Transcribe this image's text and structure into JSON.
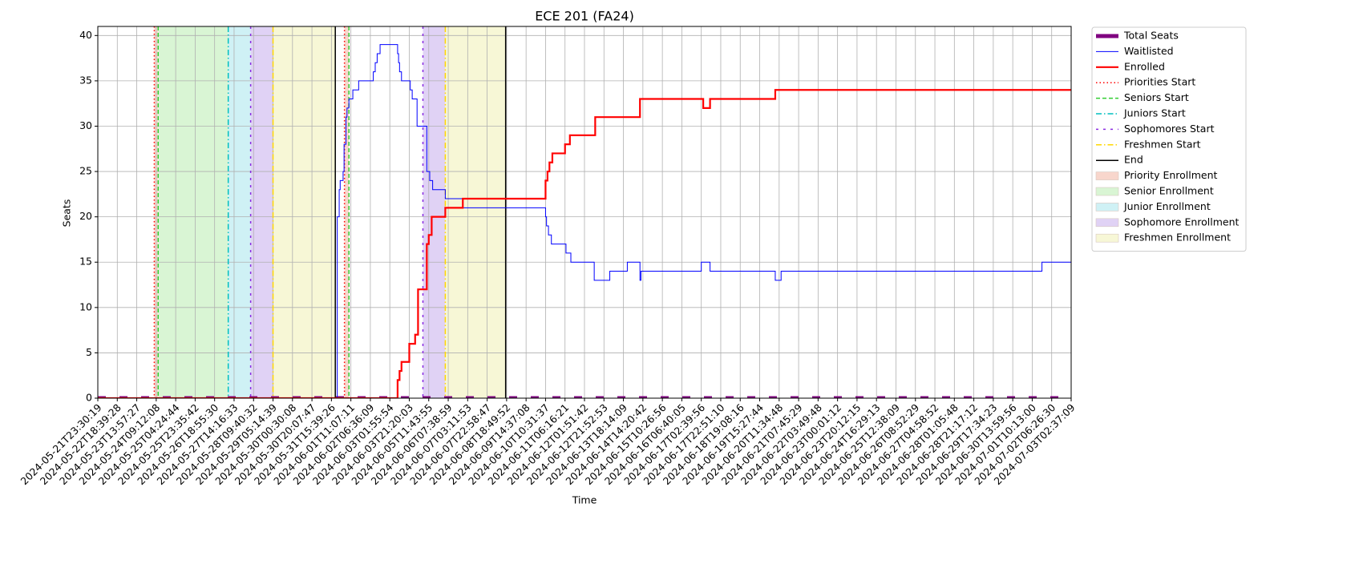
{
  "chart_data": {
    "type": "line",
    "title": "ECE 201 (FA24)",
    "xlabel": "Time",
    "ylabel": "Seats",
    "xlim": [
      0,
      50
    ],
    "ylim": [
      0,
      41
    ],
    "yticks": [
      0,
      5,
      10,
      15,
      20,
      25,
      30,
      35,
      40
    ],
    "grid": true,
    "step": "post",
    "legend": "outside upper right",
    "xticks": [
      {
        "value": 0,
        "label": "2024-05-21T23:30:19"
      },
      {
        "value": 1,
        "label": "2024-05-22T18:39:28"
      },
      {
        "value": 2,
        "label": "2024-05-23T13:57:27"
      },
      {
        "value": 3,
        "label": "2024-05-24T09:12:08"
      },
      {
        "value": 4,
        "label": "2024-05-25T04:24:44"
      },
      {
        "value": 5,
        "label": "2024-05-25T23:35:42"
      },
      {
        "value": 6,
        "label": "2024-05-26T18:55:30"
      },
      {
        "value": 7,
        "label": "2024-05-27T14:16:33"
      },
      {
        "value": 8,
        "label": "2024-05-28T09:40:32"
      },
      {
        "value": 9,
        "label": "2024-05-29T05:14:39"
      },
      {
        "value": 10,
        "label": "2024-05-30T00:30:08"
      },
      {
        "value": 11,
        "label": "2024-05-30T20:07:47"
      },
      {
        "value": 12,
        "label": "2024-05-31T15:39:26"
      },
      {
        "value": 13,
        "label": "2024-06-01T11:07:11"
      },
      {
        "value": 14,
        "label": "2024-06-02T06:36:09"
      },
      {
        "value": 15,
        "label": "2024-06-03T01:55:54"
      },
      {
        "value": 16,
        "label": "2024-06-03T21:20:03"
      },
      {
        "value": 17,
        "label": "2024-06-05T11:43:55"
      },
      {
        "value": 18,
        "label": "2024-06-06T07:38:59"
      },
      {
        "value": 19,
        "label": "2024-06-07T03:11:53"
      },
      {
        "value": 20,
        "label": "2024-06-07T22:58:47"
      },
      {
        "value": 21,
        "label": "2024-06-08T18:49:52"
      },
      {
        "value": 22,
        "label": "2024-06-09T14:37:08"
      },
      {
        "value": 23,
        "label": "2024-06-10T10:31:37"
      },
      {
        "value": 24,
        "label": "2024-06-11T06:16:21"
      },
      {
        "value": 25,
        "label": "2024-06-12T01:51:42"
      },
      {
        "value": 26,
        "label": "2024-06-12T21:52:53"
      },
      {
        "value": 27,
        "label": "2024-06-13T18:14:09"
      },
      {
        "value": 28,
        "label": "2024-06-14T14:20:42"
      },
      {
        "value": 29,
        "label": "2024-06-15T10:26:56"
      },
      {
        "value": 30,
        "label": "2024-06-16T06:40:05"
      },
      {
        "value": 31,
        "label": "2024-06-17T02:39:56"
      },
      {
        "value": 32,
        "label": "2024-06-17T22:51:10"
      },
      {
        "value": 33,
        "label": "2024-06-18T19:08:16"
      },
      {
        "value": 34,
        "label": "2024-06-19T15:27:44"
      },
      {
        "value": 35,
        "label": "2024-06-20T11:34:48"
      },
      {
        "value": 36,
        "label": "2024-06-21T07:45:29"
      },
      {
        "value": 37,
        "label": "2024-06-22T03:49:48"
      },
      {
        "value": 38,
        "label": "2024-06-23T00:01:12"
      },
      {
        "value": 39,
        "label": "2024-06-23T20:12:15"
      },
      {
        "value": 40,
        "label": "2024-06-24T16:29:13"
      },
      {
        "value": 41,
        "label": "2024-06-25T12:38:09"
      },
      {
        "value": 42,
        "label": "2024-06-26T08:52:29"
      },
      {
        "value": 43,
        "label": "2024-06-27T04:58:52"
      },
      {
        "value": 44,
        "label": "2024-06-28T01:05:48"
      },
      {
        "value": 45,
        "label": "2024-06-28T21:17:12"
      },
      {
        "value": 46,
        "label": "2024-06-29T17:34:23"
      },
      {
        "value": 47,
        "label": "2024-06-30T13:59:56"
      },
      {
        "value": 48,
        "label": "2024-07-01T10:13:00"
      },
      {
        "value": 49,
        "label": "2024-07-02T06:26:30"
      },
      {
        "value": 50,
        "label": "2024-07-03T02:37:09"
      }
    ],
    "series": [
      {
        "name": "Total Seats",
        "color": "purple",
        "width": 5,
        "dash": "10,17",
        "x": [
          0,
          50
        ],
        "values": [
          0,
          0
        ]
      },
      {
        "name": "Waitlisted",
        "color": "blue",
        "width": 1,
        "dash": "",
        "x": [
          12.25,
          12.3,
          12.4,
          12.45,
          12.6,
          12.65,
          12.75,
          12.8,
          12.9,
          13.1,
          13.4,
          14.15,
          14.25,
          14.35,
          14.5,
          15.4,
          15.45,
          15.5,
          15.6,
          16.05,
          16.15,
          16.4,
          16.9,
          17.05,
          17.2,
          17.85,
          18.75,
          22.3,
          23.0,
          23.05,
          23.15,
          23.3,
          24.05,
          24.3,
          25.5,
          26.3,
          27.2,
          27.85,
          27.9,
          31.0,
          31.45,
          34.8,
          35.1,
          48.5,
          50
        ],
        "values": [
          0,
          20,
          23,
          24,
          25,
          28,
          31,
          32,
          33,
          34,
          35,
          36,
          37,
          38,
          39,
          38,
          37,
          36,
          35,
          34,
          33,
          30,
          25,
          24,
          23,
          22,
          21,
          21,
          20,
          19,
          18,
          17,
          16,
          15,
          13,
          14,
          15,
          13,
          14,
          15,
          14,
          13,
          14,
          15,
          15
        ]
      },
      {
        "name": "Enrolled",
        "color": "red",
        "width": 2.2,
        "dash": "",
        "x": [
          0,
          15.4,
          15.5,
          15.6,
          16.0,
          16.3,
          16.45,
          16.9,
          17.0,
          17.15,
          17.85,
          18.75,
          23.0,
          23.1,
          23.2,
          23.35,
          24.0,
          24.25,
          25.55,
          27.85,
          31.1,
          31.45,
          34.8,
          50
        ],
        "values": [
          0,
          2,
          3,
          4,
          6,
          7,
          12,
          17,
          18,
          20,
          21,
          22,
          24,
          25,
          26,
          27,
          28,
          29,
          31,
          33,
          32,
          33,
          34,
          34
        ]
      }
    ],
    "events": [
      {
        "name": "Priorities Start",
        "color": "red",
        "dash": "1.5,3",
        "x": [
          2.9,
          12.67
        ]
      },
      {
        "name": "Seniors Start",
        "color": "limegreen",
        "dash": "5,3",
        "x": [
          3.1,
          12.9
        ]
      },
      {
        "name": "Juniors Start",
        "color": "#00bfbf",
        "dash": "7,3,1.5,3",
        "x": [
          6.7
        ]
      },
      {
        "name": "Sophomores Start",
        "color": "blueviolet",
        "dash": "3,6",
        "x": [
          7.85,
          16.7
        ]
      },
      {
        "name": "Freshmen Start",
        "color": "gold",
        "dash": "7,3,1.5,3",
        "x": [
          9.0,
          17.85
        ]
      },
      {
        "name": "End",
        "color": "black",
        "dash": "",
        "x": [
          12.2,
          20.95
        ]
      }
    ],
    "spans": [
      {
        "name": "Priority Enrollment",
        "color": "#f8d6cc",
        "ranges": [
          [
            2.9,
            3.1
          ],
          [
            12.67,
            12.9
          ]
        ]
      },
      {
        "name": "Senior Enrollment",
        "color": "#d9f5d4",
        "ranges": [
          [
            3.1,
            6.7
          ]
        ]
      },
      {
        "name": "Junior Enrollment",
        "color": "#cff1f5",
        "ranges": [
          [
            6.7,
            7.85
          ]
        ]
      },
      {
        "name": "Sophomore Enrollment",
        "color": "#e0d2f5",
        "ranges": [
          [
            7.85,
            9.0
          ],
          [
            16.7,
            17.85
          ]
        ]
      },
      {
        "name": "Freshmen Enrollment",
        "color": "#f7f7d6",
        "ranges": [
          [
            9.0,
            12.2
          ],
          [
            17.85,
            20.95
          ]
        ]
      }
    ]
  }
}
